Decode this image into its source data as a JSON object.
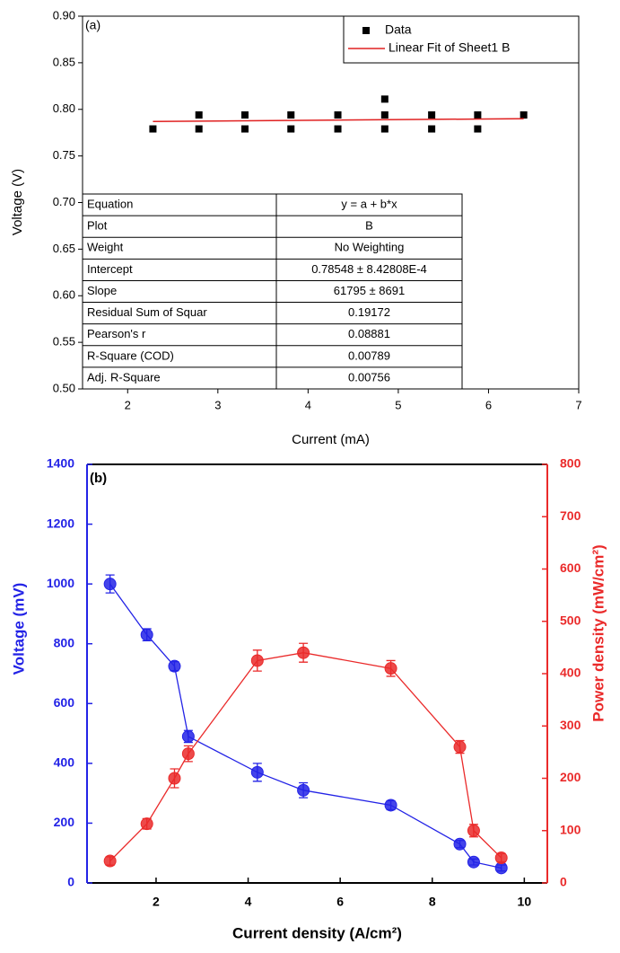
{
  "chart_data": [
    {
      "type": "scatter",
      "panel_label": "(a)",
      "xlabel": "Current (mA)",
      "ylabel": "Voltage (V)",
      "xlim": [
        1.5,
        7
      ],
      "xticks": [
        2,
        3,
        4,
        5,
        6,
        7
      ],
      "ylim": [
        0.5,
        0.9
      ],
      "yticks": [
        {
          "value": 0.5,
          "label": "0.50"
        },
        0.55,
        {
          "value": 0.6,
          "label": "0.60"
        },
        0.65,
        {
          "value": 0.7,
          "label": "0.70"
        },
        0.75,
        {
          "value": 0.8,
          "label": "0.80"
        },
        0.85,
        {
          "value": 0.9,
          "label": "0.90"
        }
      ],
      "legend": "upper right",
      "series": [
        {
          "name": "Data",
          "color": "#000000",
          "marker": "square",
          "x": [
            2.28,
            2.79,
            2.79,
            3.3,
            3.3,
            3.81,
            3.81,
            4.33,
            4.33,
            4.85,
            4.85,
            4.85,
            5.37,
            5.37,
            5.88,
            5.88,
            6.39
          ],
          "values": [
            0.779,
            0.779,
            0.794,
            0.779,
            0.794,
            0.779,
            0.794,
            0.779,
            0.794,
            0.779,
            0.794,
            0.811,
            0.779,
            0.794,
            0.779,
            0.794,
            0.794
          ]
        },
        {
          "name": "Linear Fit of Sheet1 B",
          "color": "#e02020",
          "marker": "line",
          "x": [
            2.28,
            6.39
          ],
          "values": [
            0.787,
            0.79
          ]
        }
      ],
      "table": {
        "rows": [
          [
            "Equation",
            "y = a + b*x"
          ],
          [
            "Plot",
            "B"
          ],
          [
            "Weight",
            "No Weighting"
          ],
          [
            "Intercept",
            "0.78548 ± 8.42808E-4"
          ],
          [
            "Slope",
            "61795 ± 8691"
          ],
          [
            "Residual Sum of Squar",
            "0.19172"
          ],
          [
            "Pearson's r",
            "0.08881"
          ],
          [
            "R-Square (COD)",
            "0.00789"
          ],
          [
            "Adj. R-Square",
            "0.00756"
          ]
        ]
      }
    },
    {
      "type": "line",
      "panel_label": "(b)",
      "xlabel": "Current density (A/cm²)",
      "ylabel": "Voltage (mV)",
      "y2label": "Power density (mW/cm²)",
      "xlim": [
        0.5,
        10.5
      ],
      "xticks": [
        2,
        4,
        6,
        8,
        10
      ],
      "ylim": [
        0,
        1400
      ],
      "yticks": [
        0,
        200,
        400,
        600,
        800,
        1000,
        1200,
        1400
      ],
      "y2lim": [
        0,
        800
      ],
      "y2ticks": [
        0,
        100,
        200,
        300,
        400,
        500,
        600,
        700,
        800
      ],
      "series": [
        {
          "color": "#2323e6",
          "x": [
            1.0,
            1.8,
            2.4,
            2.7,
            4.2,
            5.2,
            7.1,
            8.6,
            8.9,
            9.5
          ],
          "values": [
            1000,
            830,
            725,
            490,
            370,
            310,
            260,
            130,
            70,
            50
          ],
          "errors": [
            30,
            20,
            15,
            20,
            30,
            25,
            15,
            12,
            10,
            10
          ]
        },
        {
          "color": "#ea2a2a",
          "axis": "y2",
          "x": [
            1.0,
            1.8,
            2.4,
            2.7,
            4.2,
            5.2,
            7.1,
            8.6,
            8.9,
            9.5
          ],
          "values": [
            42,
            113,
            200,
            247,
            425,
            440,
            410,
            260,
            100,
            48
          ],
          "errors": [
            8,
            10,
            18,
            15,
            20,
            18,
            15,
            12,
            12,
            8
          ]
        }
      ]
    }
  ]
}
